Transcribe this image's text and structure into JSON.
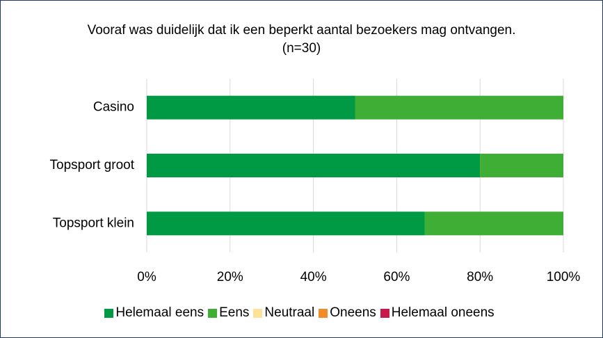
{
  "chart_data": {
    "type": "stacked-bar-horizontal",
    "title": "Vooraf was duidelijk dat ik een beperkt aantal bezoekers mag ontvangen.(n=30)",
    "categories": [
      "Casino",
      "Topsport groot",
      "Topsport klein"
    ],
    "series": [
      {
        "name": "Helemaal eens",
        "color": "#009a44",
        "values": [
          50,
          80,
          66.7
        ]
      },
      {
        "name": "Eens",
        "color": "#3fae34",
        "values": [
          50,
          20,
          33.3
        ]
      },
      {
        "name": "Neutraal",
        "color": "#fde29a",
        "values": [
          0,
          0,
          0
        ]
      },
      {
        "name": "Oneens",
        "color": "#f28c28",
        "values": [
          0,
          0,
          0
        ]
      },
      {
        "name": "Helemaal oneens",
        "color": "#c8194b",
        "values": [
          0,
          0,
          0
        ]
      }
    ],
    "xlim": [
      0,
      100
    ],
    "xticks": [
      {
        "value": 0,
        "label": "0%"
      },
      {
        "value": 20,
        "label": "20%"
      },
      {
        "value": 40,
        "label": "40%"
      },
      {
        "value": 60,
        "label": "60%"
      },
      {
        "value": 80,
        "label": "80%"
      },
      {
        "value": 100,
        "label": "100%"
      }
    ],
    "grid": true,
    "legend": "bottom"
  }
}
